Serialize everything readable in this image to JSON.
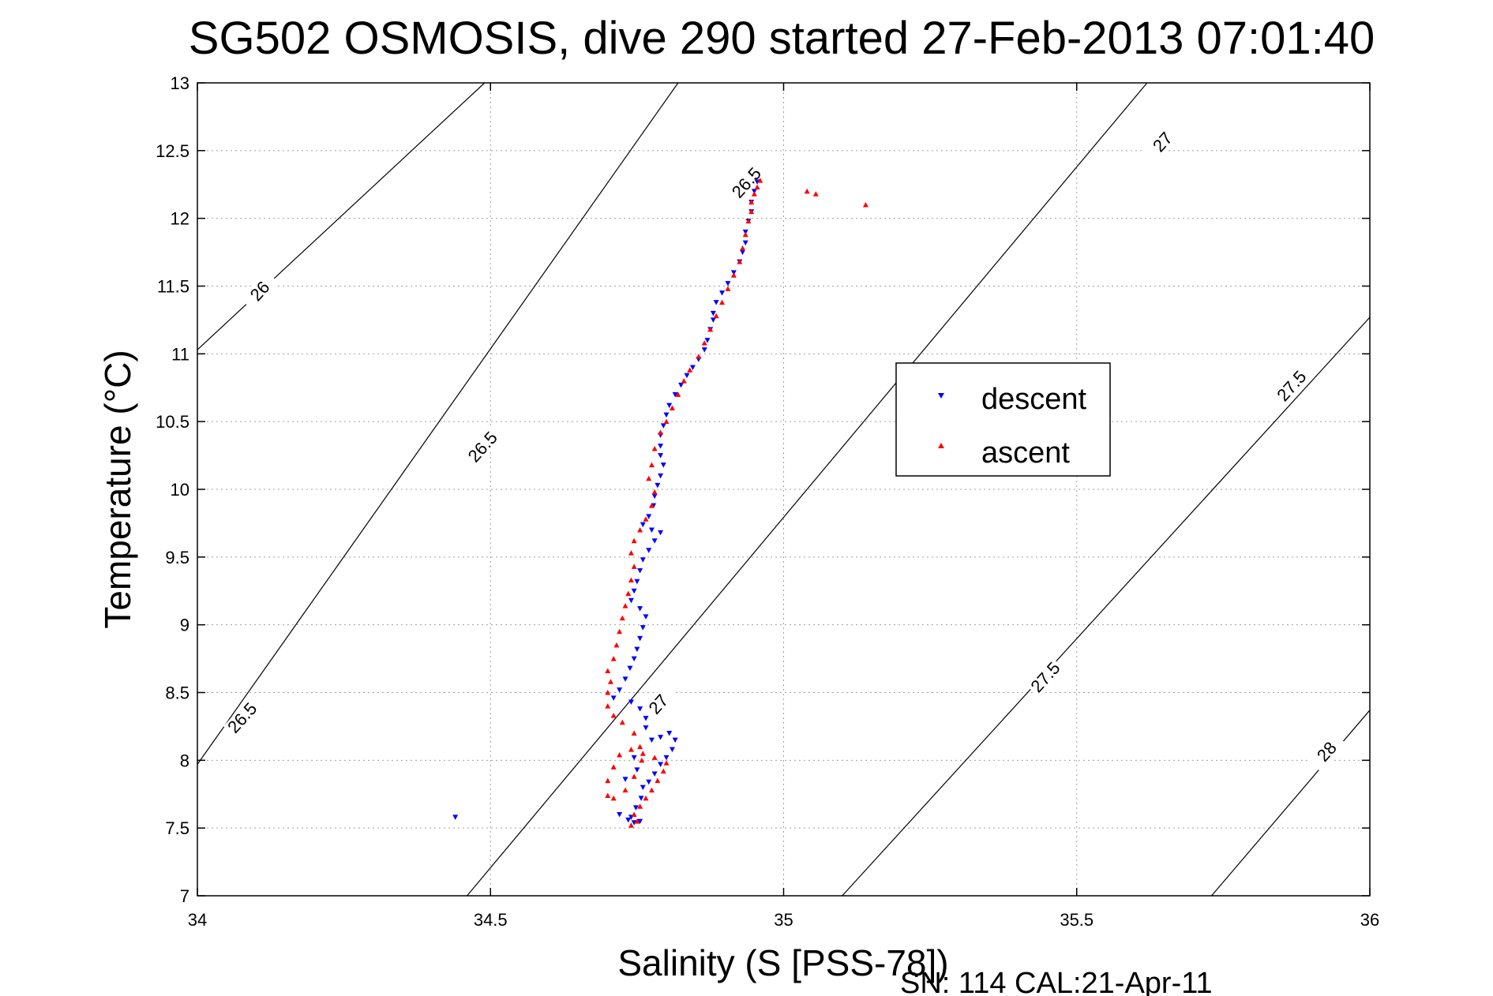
{
  "chart_data": {
    "type": "scatter",
    "title": "SG502 OSMOSIS, dive 290 started 27-Feb-2013 07:01:40",
    "xlabel": "Salinity (S [PSS-78])",
    "ylabel": "Temperature (°C)",
    "xlim": [
      34,
      36
    ],
    "ylim": [
      7,
      13
    ],
    "xticks": [
      34,
      34.5,
      35,
      35.5,
      36
    ],
    "xtick_labels": [
      "34",
      "34.5",
      "35",
      "35.5",
      "36"
    ],
    "yticks": [
      7,
      7.5,
      8,
      8.5,
      9,
      9.5,
      10,
      10.5,
      11,
      11.5,
      12,
      12.5,
      13
    ],
    "ytick_labels": [
      "7",
      "7.5",
      "8",
      "8.5",
      "9",
      "9.5",
      "10",
      "10.5",
      "11",
      "11.5",
      "12",
      "12.5",
      "13"
    ],
    "grid": true,
    "legend_position": "center-right",
    "density_contours": [
      {
        "label": "26",
        "points": [
          [
            34,
            11.03
          ],
          [
            34.49,
            13
          ]
        ]
      },
      {
        "label": "26.5",
        "points": [
          [
            34,
            7.97
          ],
          [
            34.82,
            13
          ]
        ]
      },
      {
        "label": "27",
        "points": [
          [
            34.46,
            7
          ],
          [
            35.62,
            13
          ]
        ]
      },
      {
        "label": "27.5",
        "points": [
          [
            35.1,
            7
          ],
          [
            36,
            11.27
          ]
        ]
      },
      {
        "label": "28",
        "points": [
          [
            35.73,
            7
          ],
          [
            36,
            8.37
          ]
        ]
      }
    ],
    "contour_labels": [
      {
        "text": "26",
        "x": 34.11,
        "y": 11.45
      },
      {
        "text": "26.5",
        "x": 34.49,
        "y": 10.3
      },
      {
        "text": "26.5",
        "x": 34.08,
        "y": 8.3
      },
      {
        "text": "26.5",
        "x": 34.94,
        "y": 12.25
      },
      {
        "text": "27",
        "x": 34.79,
        "y": 8.4
      },
      {
        "text": "27",
        "x": 35.65,
        "y": 12.55
      },
      {
        "text": "27.5",
        "x": 35.45,
        "y": 8.6
      },
      {
        "text": "27.5",
        "x": 35.87,
        "y": 10.75
      },
      {
        "text": "28",
        "x": 35.93,
        "y": 8.05
      }
    ],
    "series": [
      {
        "name": "descent",
        "color": "#0000ff",
        "marker": "triangle-down",
        "points": [
          [
            34.955,
            12.27
          ],
          [
            34.95,
            12.2
          ],
          [
            34.945,
            12.12
          ],
          [
            34.945,
            12.05
          ],
          [
            34.94,
            11.98
          ],
          [
            34.935,
            11.9
          ],
          [
            34.935,
            11.82
          ],
          [
            34.93,
            11.75
          ],
          [
            34.925,
            11.68
          ],
          [
            34.915,
            11.6
          ],
          [
            34.905,
            11.52
          ],
          [
            34.895,
            11.45
          ],
          [
            34.885,
            11.38
          ],
          [
            34.88,
            11.3
          ],
          [
            34.88,
            11.25
          ],
          [
            34.875,
            11.18
          ],
          [
            34.87,
            11.1
          ],
          [
            34.865,
            11.03
          ],
          [
            34.855,
            10.96
          ],
          [
            34.845,
            10.9
          ],
          [
            34.835,
            10.84
          ],
          [
            34.825,
            10.77
          ],
          [
            34.815,
            10.7
          ],
          [
            34.805,
            10.62
          ],
          [
            34.8,
            10.55
          ],
          [
            34.795,
            10.47
          ],
          [
            34.79,
            10.4
          ],
          [
            34.79,
            10.32
          ],
          [
            34.79,
            10.25
          ],
          [
            34.795,
            10.18
          ],
          [
            34.79,
            10.1
          ],
          [
            34.785,
            10.03
          ],
          [
            34.78,
            9.95
          ],
          [
            34.778,
            9.88
          ],
          [
            34.77,
            9.8
          ],
          [
            34.76,
            9.74
          ],
          [
            34.775,
            9.7
          ],
          [
            34.79,
            9.68
          ],
          [
            34.78,
            9.62
          ],
          [
            34.77,
            9.55
          ],
          [
            34.76,
            9.48
          ],
          [
            34.755,
            9.4
          ],
          [
            34.75,
            9.32
          ],
          [
            34.745,
            9.25
          ],
          [
            34.74,
            9.18
          ],
          [
            34.755,
            9.12
          ],
          [
            34.765,
            9.06
          ],
          [
            34.76,
            8.98
          ],
          [
            34.755,
            8.9
          ],
          [
            34.75,
            8.82
          ],
          [
            34.745,
            8.75
          ],
          [
            34.738,
            8.68
          ],
          [
            34.73,
            8.6
          ],
          [
            34.72,
            8.52
          ],
          [
            34.71,
            8.46
          ],
          [
            34.74,
            8.43
          ],
          [
            34.755,
            8.38
          ],
          [
            34.765,
            8.31
          ],
          [
            34.765,
            8.24
          ],
          [
            34.775,
            8.15
          ],
          [
            34.79,
            8.17
          ],
          [
            34.805,
            8.2
          ],
          [
            34.815,
            8.15
          ],
          [
            34.81,
            8.08
          ],
          [
            34.8,
            8.02
          ],
          [
            34.79,
            7.97
          ],
          [
            34.78,
            7.9
          ],
          [
            34.77,
            7.84
          ],
          [
            34.76,
            7.8
          ],
          [
            34.757,
            7.72
          ],
          [
            34.748,
            7.65
          ],
          [
            34.74,
            7.58
          ],
          [
            34.735,
            7.56
          ],
          [
            34.745,
            7.54
          ],
          [
            34.755,
            7.55
          ],
          [
            34.745,
            8.02
          ],
          [
            34.75,
            7.93
          ],
          [
            34.73,
            7.86
          ],
          [
            34.72,
            7.6
          ],
          [
            34.44,
            7.58
          ]
        ]
      },
      {
        "name": "ascent",
        "color": "#ff0000",
        "marker": "triangle-up",
        "points": [
          [
            34.74,
            7.52
          ],
          [
            34.75,
            7.55
          ],
          [
            34.745,
            7.6
          ],
          [
            34.755,
            7.66
          ],
          [
            34.765,
            7.72
          ],
          [
            34.775,
            7.78
          ],
          [
            34.785,
            7.85
          ],
          [
            34.795,
            7.92
          ],
          [
            34.8,
            7.98
          ],
          [
            34.78,
            8.02
          ],
          [
            34.76,
            8.05
          ],
          [
            34.74,
            8.08
          ],
          [
            34.72,
            8.04
          ],
          [
            34.71,
            7.95
          ],
          [
            34.7,
            7.85
          ],
          [
            34.7,
            7.74
          ],
          [
            34.71,
            7.72
          ],
          [
            34.73,
            7.78
          ],
          [
            34.745,
            7.88
          ],
          [
            34.758,
            8.0
          ],
          [
            34.755,
            8.1
          ],
          [
            34.745,
            8.2
          ],
          [
            34.725,
            8.28
          ],
          [
            34.71,
            8.33
          ],
          [
            34.7,
            8.4
          ],
          [
            34.7,
            8.5
          ],
          [
            34.705,
            8.58
          ],
          [
            34.7,
            8.66
          ],
          [
            34.71,
            8.75
          ],
          [
            34.715,
            8.85
          ],
          [
            34.72,
            8.95
          ],
          [
            34.725,
            9.05
          ],
          [
            34.73,
            9.14
          ],
          [
            34.735,
            9.23
          ],
          [
            34.74,
            9.33
          ],
          [
            34.745,
            9.43
          ],
          [
            34.74,
            9.53
          ],
          [
            34.745,
            9.62
          ],
          [
            34.755,
            9.7
          ],
          [
            34.765,
            9.78
          ],
          [
            34.775,
            9.88
          ],
          [
            34.78,
            9.98
          ],
          [
            34.77,
            10.08
          ],
          [
            34.775,
            10.18
          ],
          [
            34.78,
            10.3
          ],
          [
            34.79,
            10.42
          ],
          [
            34.8,
            10.5
          ],
          [
            34.81,
            10.6
          ],
          [
            34.82,
            10.7
          ],
          [
            34.83,
            10.8
          ],
          [
            34.84,
            10.88
          ],
          [
            34.855,
            10.98
          ],
          [
            34.865,
            11.08
          ],
          [
            34.875,
            11.18
          ],
          [
            34.885,
            11.28
          ],
          [
            34.895,
            11.38
          ],
          [
            34.905,
            11.48
          ],
          [
            34.915,
            11.58
          ],
          [
            34.925,
            11.68
          ],
          [
            34.93,
            11.78
          ],
          [
            34.935,
            11.88
          ],
          [
            34.94,
            11.98
          ],
          [
            34.945,
            12.05
          ],
          [
            34.945,
            12.12
          ],
          [
            34.95,
            12.18
          ],
          [
            34.955,
            12.23
          ],
          [
            34.96,
            12.28
          ],
          [
            35.04,
            12.2
          ],
          [
            35.055,
            12.18
          ],
          [
            35.14,
            12.1
          ]
        ]
      }
    ],
    "legend": {
      "descent_label": "descent",
      "ascent_label": "ascent"
    }
  },
  "footer": {
    "serial": "SN: 114  CAL:21-Apr-11"
  }
}
